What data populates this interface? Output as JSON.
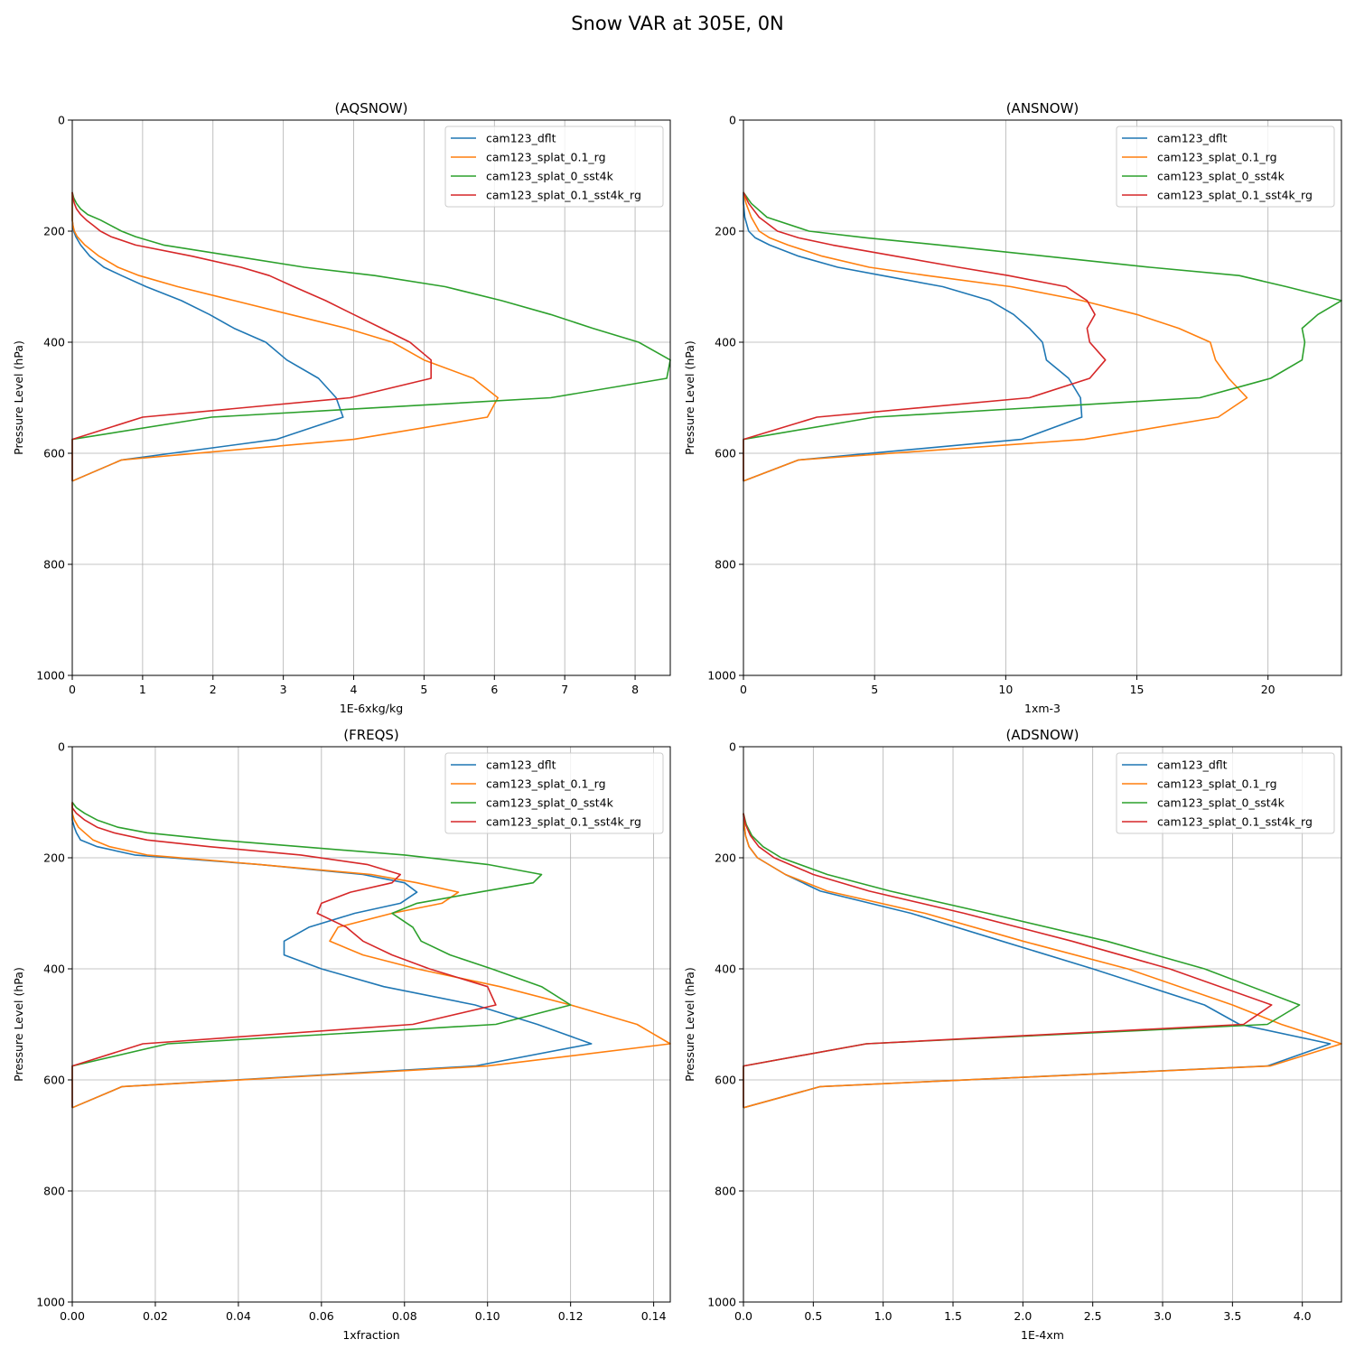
{
  "figure_title": "Snow VAR at 305E, 0N",
  "colors": {
    "cam123_dflt": "#1f77b4",
    "cam123_splat_0.1_rg": "#ff7f0e",
    "cam123_splat_0_sst4k": "#2ca02c",
    "cam123_splat_0.1_sst4k_rg": "#d62728"
  },
  "chart_data": [
    {
      "type": "line",
      "title": "(AQSNOW)",
      "xlabel": "1E-6xkg/kg",
      "ylabel": "Pressure Level (hPa)",
      "xlim": [
        0,
        8.5
      ],
      "ylim": [
        1000,
        0
      ],
      "xticks": [
        0,
        1,
        2,
        3,
        4,
        5,
        6,
        7,
        8
      ],
      "yticks": [
        0,
        200,
        400,
        600,
        800,
        1000
      ],
      "grid": true,
      "legend": "top-right",
      "y": [
        130,
        140,
        150,
        160,
        170,
        180,
        190,
        200,
        210,
        225,
        245,
        265,
        280,
        300,
        325,
        350,
        375,
        400,
        432,
        465,
        500,
        535,
        575,
        612,
        650
      ],
      "series": [
        {
          "name": "cam123_dflt",
          "values": [
            0,
            0,
            0,
            0,
            0,
            0,
            0.01,
            0.02,
            0.05,
            0.12,
            0.25,
            0.45,
            0.7,
            1.05,
            1.55,
            1.95,
            2.3,
            2.75,
            3.05,
            3.5,
            3.75,
            3.85,
            2.9,
            0.7,
            0
          ]
        },
        {
          "name": "cam123_splat_0.1_rg",
          "values": [
            0,
            0,
            0,
            0,
            0,
            0,
            0.01,
            0.03,
            0.07,
            0.18,
            0.38,
            0.65,
            0.95,
            1.5,
            2.3,
            3.1,
            3.9,
            4.55,
            5.0,
            5.7,
            6.05,
            5.9,
            4.0,
            0.7,
            0
          ]
        },
        {
          "name": "cam123_splat_0_sst4k",
          "values": [
            0,
            0.02,
            0.06,
            0.12,
            0.22,
            0.4,
            0.55,
            0.7,
            0.9,
            1.3,
            2.3,
            3.3,
            4.3,
            5.3,
            6.1,
            6.8,
            7.4,
            8.05,
            8.5,
            8.45,
            6.8,
            1.98,
            0,
            0,
            0
          ]
        },
        {
          "name": "cam123_splat_0.1_sst4k_rg",
          "values": [
            0,
            0.01,
            0.03,
            0.06,
            0.12,
            0.2,
            0.3,
            0.4,
            0.55,
            0.9,
            1.7,
            2.4,
            2.8,
            3.15,
            3.6,
            4.0,
            4.4,
            4.8,
            5.1,
            5.1,
            3.95,
            1.0,
            0,
            0,
            0
          ]
        }
      ]
    },
    {
      "type": "line",
      "title": "(ANSNOW)",
      "xlabel": "1xm-3",
      "ylabel": "Pressure Level (hPa)",
      "xlim": [
        0,
        22.8
      ],
      "ylim": [
        1000,
        0
      ],
      "xticks": [
        0,
        5,
        10,
        15,
        20
      ],
      "yticks": [
        0,
        200,
        400,
        600,
        800,
        1000
      ],
      "grid": true,
      "legend": "top-right",
      "y": [
        130,
        150,
        175,
        200,
        212,
        225,
        245,
        265,
        280,
        300,
        325,
        350,
        375,
        400,
        432,
        465,
        500,
        535,
        575,
        612,
        650
      ],
      "series": [
        {
          "name": "cam123_dflt",
          "values": [
            0,
            0,
            0.05,
            0.2,
            0.45,
            1.0,
            2.1,
            3.6,
            5.3,
            7.6,
            9.4,
            10.3,
            10.9,
            11.4,
            11.55,
            12.4,
            12.85,
            12.9,
            10.6,
            2.1,
            0
          ]
        },
        {
          "name": "cam123_splat_0.1_rg",
          "values": [
            0,
            0.1,
            0.3,
            0.6,
            1.0,
            1.7,
            3.0,
            4.8,
            7.0,
            10.2,
            12.9,
            15.0,
            16.6,
            17.8,
            18.0,
            18.5,
            19.2,
            18.1,
            13.0,
            2.1,
            0
          ]
        },
        {
          "name": "cam123_splat_0_sst4k",
          "values": [
            0,
            0.3,
            0.9,
            2.5,
            4.7,
            7.5,
            11.5,
            15.5,
            18.9,
            20.7,
            22.8,
            21.9,
            21.3,
            21.4,
            21.3,
            20.1,
            17.4,
            5.0,
            0,
            0,
            0
          ]
        },
        {
          "name": "cam123_splat_0.1_sst4k_rg",
          "values": [
            0,
            0.2,
            0.6,
            1.3,
            2.1,
            3.4,
            5.8,
            8.2,
            10.1,
            12.3,
            13.1,
            13.4,
            13.1,
            13.2,
            13.8,
            13.2,
            10.9,
            2.8,
            0,
            0,
            0
          ]
        }
      ]
    },
    {
      "type": "line",
      "title": "(FREQS)",
      "xlabel": "1xfraction",
      "ylabel": "Pressure Level (hPa)",
      "xlim": [
        0,
        0.144
      ],
      "ylim": [
        1000,
        0
      ],
      "xticks": [
        0.0,
        0.02,
        0.04,
        0.06,
        0.08,
        0.1,
        0.12,
        0.14
      ],
      "xtick_labels": [
        "0.00",
        "0.02",
        "0.04",
        "0.06",
        "0.08",
        "0.10",
        "0.12",
        "0.14"
      ],
      "yticks": [
        0,
        200,
        400,
        600,
        800,
        1000
      ],
      "grid": true,
      "legend": "top-right",
      "y": [
        100,
        110,
        120,
        132,
        145,
        155,
        168,
        180,
        195,
        212,
        230,
        245,
        262,
        282,
        300,
        325,
        350,
        375,
        400,
        432,
        465,
        500,
        535,
        575,
        612,
        650
      ],
      "series": [
        {
          "name": "cam123_dflt",
          "values": [
            0,
            0,
            0,
            0,
            0.0005,
            0.001,
            0.002,
            0.006,
            0.015,
            0.045,
            0.07,
            0.08,
            0.083,
            0.079,
            0.068,
            0.057,
            0.051,
            0.051,
            0.06,
            0.075,
            0.097,
            0.112,
            0.125,
            0.097,
            0.012,
            0
          ]
        },
        {
          "name": "cam123_splat_0.1_rg",
          "values": [
            0,
            0,
            0,
            0.0005,
            0.0015,
            0.003,
            0.005,
            0.009,
            0.018,
            0.045,
            0.072,
            0.083,
            0.093,
            0.089,
            0.077,
            0.064,
            0.062,
            0.07,
            0.083,
            0.103,
            0.12,
            0.136,
            0.144,
            0.1,
            0.012,
            0
          ]
        },
        {
          "name": "cam123_splat_0_sst4k",
          "values": [
            0,
            0.001,
            0.003,
            0.006,
            0.011,
            0.018,
            0.035,
            0.055,
            0.08,
            0.1,
            0.113,
            0.111,
            0.098,
            0.083,
            0.077,
            0.082,
            0.084,
            0.091,
            0.101,
            0.113,
            0.12,
            0.102,
            0.023,
            0,
            0,
            0
          ]
        },
        {
          "name": "cam123_splat_0.1_sst4k_rg",
          "values": [
            0,
            0,
            0.001,
            0.003,
            0.006,
            0.01,
            0.018,
            0.033,
            0.055,
            0.071,
            0.079,
            0.077,
            0.067,
            0.06,
            0.059,
            0.066,
            0.07,
            0.077,
            0.086,
            0.1,
            0.102,
            0.082,
            0.017,
            0,
            0,
            0
          ]
        }
      ]
    },
    {
      "type": "line",
      "title": "(ADSNOW)",
      "xlabel": "1E-4xm",
      "ylabel": "Pressure Level (hPa)",
      "xlim": [
        0,
        4.28
      ],
      "ylim": [
        1000,
        0
      ],
      "xticks": [
        0.0,
        0.5,
        1.0,
        1.5,
        2.0,
        2.5,
        3.0,
        3.5,
        4.0
      ],
      "xtick_labels": [
        "0.0",
        "0.5",
        "1.0",
        "1.5",
        "2.0",
        "2.5",
        "3.0",
        "3.5",
        "4.0"
      ],
      "yticks": [
        0,
        200,
        400,
        600,
        800,
        1000
      ],
      "grid": true,
      "legend": "top-right",
      "y": [
        120,
        140,
        160,
        180,
        200,
        230,
        260,
        300,
        350,
        400,
        465,
        500,
        535,
        575,
        612,
        650
      ],
      "series": [
        {
          "name": "cam123_dflt",
          "values": [
            0,
            0.005,
            0.015,
            0.04,
            0.1,
            0.3,
            0.55,
            1.2,
            1.85,
            2.5,
            3.3,
            3.55,
            4.2,
            3.75,
            0.55,
            0
          ]
        },
        {
          "name": "cam123_splat_0.1_rg",
          "values": [
            0,
            0.005,
            0.015,
            0.04,
            0.1,
            0.3,
            0.6,
            1.3,
            2.0,
            2.75,
            3.5,
            3.85,
            4.28,
            3.77,
            0.55,
            0
          ]
        },
        {
          "name": "cam123_splat_0_sst4k",
          "values": [
            0,
            0.02,
            0.06,
            0.14,
            0.27,
            0.6,
            1.05,
            1.75,
            2.6,
            3.3,
            3.98,
            3.75,
            0.88,
            0,
            0,
            0
          ]
        },
        {
          "name": "cam123_splat_0.1_sst4k_rg",
          "values": [
            0,
            0.015,
            0.05,
            0.11,
            0.22,
            0.5,
            0.9,
            1.58,
            2.35,
            3.05,
            3.78,
            3.58,
            0.88,
            0,
            0,
            0
          ]
        }
      ]
    }
  ]
}
